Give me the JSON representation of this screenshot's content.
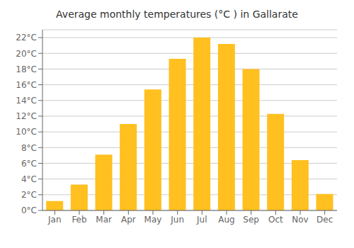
{
  "chart_data": {
    "type": "bar",
    "title": "Average monthly temperatures (°C ) in Gallarate",
    "categories": [
      "Jan",
      "Feb",
      "Mar",
      "Apr",
      "May",
      "Jun",
      "Jul",
      "Aug",
      "Sep",
      "Oct",
      "Nov",
      "Dec"
    ],
    "values": [
      1.2,
      3.3,
      7.1,
      11.0,
      15.4,
      19.3,
      22.0,
      21.2,
      18.0,
      12.3,
      6.4,
      2.1
    ],
    "color": "#FFC020",
    "ylim": [
      0,
      23
    ],
    "yticks": [
      {
        "value": 0,
        "label": "0°C"
      },
      {
        "value": 2,
        "label": "2°C"
      },
      {
        "value": 4,
        "label": "4°C"
      },
      {
        "value": 6,
        "label": "6°C"
      },
      {
        "value": 8,
        "label": "8°C"
      },
      {
        "value": 10,
        "label": "10°C"
      },
      {
        "value": 12,
        "label": "12°C"
      },
      {
        "value": 14,
        "label": "14°C"
      },
      {
        "value": 16,
        "label": "16°C"
      },
      {
        "value": 18,
        "label": "18°C"
      },
      {
        "value": 20,
        "label": "20°C"
      },
      {
        "value": 22,
        "label": "22°C"
      }
    ],
    "grid": true
  }
}
